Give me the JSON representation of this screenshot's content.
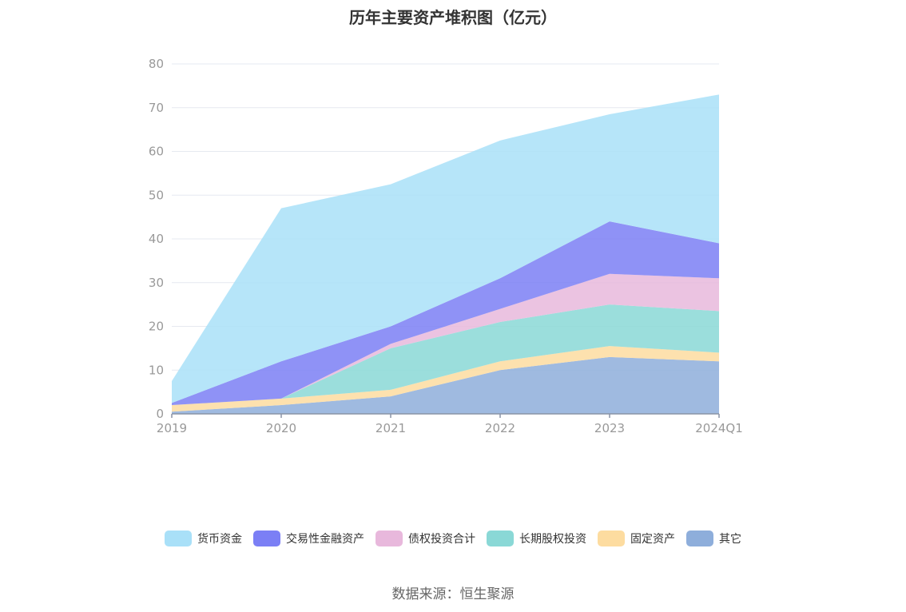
{
  "chart_data": {
    "type": "area",
    "stacked": true,
    "title": "历年主要资产堆积图（亿元）",
    "categories": [
      "2019",
      "2020",
      "2021",
      "2022",
      "2023",
      "2024Q1"
    ],
    "ylim": [
      0,
      80
    ],
    "yticks": [
      0,
      10,
      20,
      30,
      40,
      50,
      60,
      70,
      80
    ],
    "grid": true,
    "legend_position": "bottom",
    "series": [
      {
        "name": "其它",
        "color": "#8eaedb",
        "values": [
          0.5,
          2,
          4,
          10,
          13,
          12
        ]
      },
      {
        "name": "固定资产",
        "color": "#fddca0",
        "values": [
          1.5,
          1.5,
          1.5,
          2,
          2.5,
          2
        ]
      },
      {
        "name": "长期股权投资",
        "color": "#8ad8d6",
        "values": [
          0,
          0,
          9.5,
          9,
          9.5,
          9.5
        ]
      },
      {
        "name": "债权投资合计",
        "color": "#e8b8dc",
        "values": [
          0,
          0,
          1,
          3,
          7,
          7.5
        ]
      },
      {
        "name": "交易性金融资产",
        "color": "#7b7ff5",
        "values": [
          0.5,
          8.5,
          4,
          7,
          12,
          8
        ]
      },
      {
        "name": "货币资金",
        "color": "#a9e0f8",
        "values": [
          5,
          35,
          32.5,
          31.5,
          24.5,
          34
        ]
      }
    ],
    "legend_order": [
      "货币资金",
      "交易性金融资产",
      "债权投资合计",
      "长期股权投资",
      "固定资产",
      "其它"
    ]
  },
  "source": "数据来源：恒生聚源"
}
